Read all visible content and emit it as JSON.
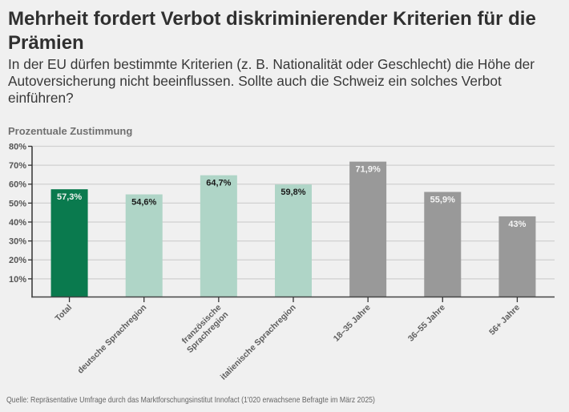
{
  "title": "Mehrheit fordert Verbot diskriminierender Kriterien für die Prämien",
  "subtitle": "In der EU dürfen bestimmte Kriterien (z. B. Nationalität oder Geschlecht) die Höhe der Autoversicherung nicht beeinflussen. Sollte auch die Schweiz ein solches Verbot einführen?",
  "source": "Quelle: Repräsentative Umfrage durch das Marktforschungsinstitut Innofact (1'020 erwachsene Befragte im März 2025)",
  "chart_data": {
    "type": "bar",
    "title": "Mehrheit fordert Verbot diskriminierender Kriterien für die Prämien",
    "subtitle": "In der EU dürfen bestimmte Kriterien (z. B. Nationalität oder Geschlecht) die Höhe der Autoversicherung nicht beeinflussen. Sollte auch die Schweiz ein solches Verbot einführen?",
    "ylabel": "Prozentuale Zustimmung",
    "xlabel": "",
    "categories": [
      "Total",
      "deutsche Sprachregion",
      "französische Sprachregion",
      "italienische Sprachregion",
      "18–35 Jahre",
      "36–55 Jahre",
      "56+ Jahre"
    ],
    "tick_labels": [
      [
        "Total"
      ],
      [
        "deutsche Sprachregion"
      ],
      [
        "französische",
        "Sprachregion"
      ],
      [
        "italienische Sprachregion"
      ],
      [
        "18–35 Jahre"
      ],
      [
        "36–55 Jahre"
      ],
      [
        "56+ Jahre"
      ]
    ],
    "values": [
      57.3,
      54.6,
      64.7,
      59.8,
      71.9,
      55.9,
      43
    ],
    "value_labels": [
      "57,3%",
      "54,6%",
      "64,7%",
      "59,8%",
      "71,9%",
      "55,9%",
      "43%"
    ],
    "bar_colors": [
      "#0a7a4e",
      "#afd5c7",
      "#afd5c7",
      "#afd5c7",
      "#999999",
      "#999999",
      "#999999"
    ],
    "value_label_colors": [
      "#eef3ef",
      "#1a1a1a",
      "#1a1a1a",
      "#1a1a1a",
      "#f5f5f5",
      "#f5f5f5",
      "#f5f5f5"
    ],
    "ylim": [
      0,
      80
    ],
    "yticks": [
      10,
      20,
      30,
      40,
      50,
      60,
      70,
      80
    ],
    "ytick_labels": [
      "10%",
      "20%",
      "30%",
      "40%",
      "50%",
      "60%",
      "70%",
      "80%"
    ],
    "grid": true,
    "legend": "none"
  }
}
